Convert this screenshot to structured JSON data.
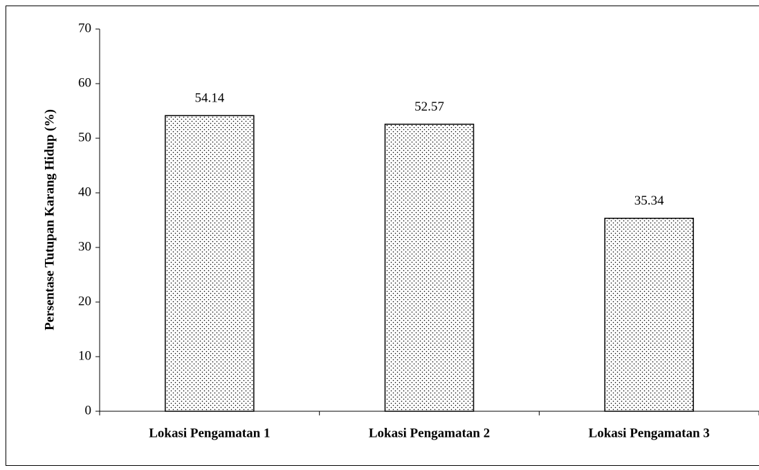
{
  "chart_data": {
    "type": "bar",
    "y_label": "Persentase Tutupan Karang Hidup (%)",
    "categories": [
      "Lokasi Pengamatan 1",
      "Lokasi Pengamatan 2",
      "Lokasi Pengamatan 3"
    ],
    "values": [
      54.14,
      52.57,
      35.34
    ],
    "color": "#000000",
    "ylim": [
      0,
      70
    ],
    "yticks": [
      0,
      10,
      20,
      30,
      40,
      50,
      60,
      70
    ]
  }
}
